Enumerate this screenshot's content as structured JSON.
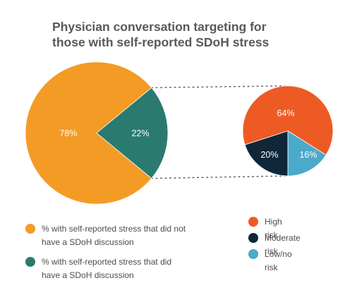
{
  "chart_data": [
    {
      "type": "pie",
      "title_lines": [
        "Physician conversation targeting for",
        "those with self-reported SDoH stress"
      ],
      "slices": [
        {
          "label": "% with self-reported stress that did not have a SDoH discussion",
          "value": 78,
          "value_label": "78%",
          "color": "#f49b25"
        },
        {
          "label": "% with self-reported stress that did have a SDoH discussion",
          "value": 22,
          "value_label": "22%",
          "color": "#2a7a70"
        }
      ],
      "legend_placement": "bottom-left"
    },
    {
      "type": "pie",
      "slices": [
        {
          "label": "High risk",
          "value": 64,
          "value_label": "64%",
          "color": "#ee5a24"
        },
        {
          "label": "Moderate risk",
          "value": 20,
          "value_label": "20%",
          "color": "#10273a"
        },
        {
          "label": "Low/no risk",
          "value": 16,
          "value_label": "16%",
          "color": "#4ba9c9"
        }
      ],
      "legend_placement": "bottom-right"
    }
  ],
  "connector_color": "#666666",
  "slice_label_color": "#ffffff"
}
